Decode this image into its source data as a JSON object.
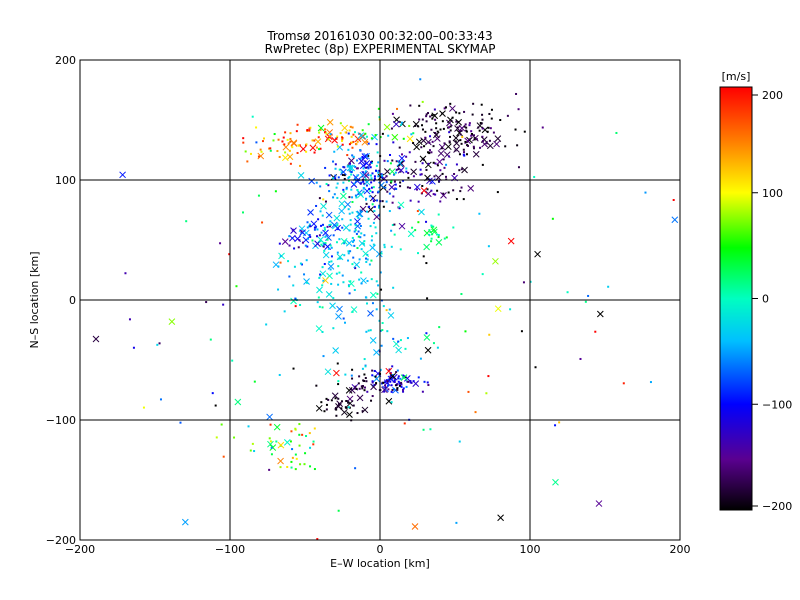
{
  "chart_data": {
    "type": "scatter",
    "title": "Tromsø 20161030 00:32:00–00:33:43",
    "subtitle": "RwPretec (8p) EXPERIMENTAL SKYMAP",
    "xlabel": "E–W location [km]",
    "ylabel": "N–S location [km]",
    "xlim": [
      -200,
      200
    ],
    "ylim": [
      -200,
      200
    ],
    "xticks": [
      "−200",
      "−100",
      "0",
      "100",
      "200"
    ],
    "yticks": [
      "−200",
      "−100",
      "0",
      "100",
      "200"
    ],
    "grid": "lines at ±100 and 0",
    "colorbar": {
      "label": "[m/s]",
      "range": [
        -200,
        200
      ],
      "ticks": [
        "200",
        "100",
        "0",
        "−100",
        "−200"
      ],
      "colormap": "black-purple-blue-cyan-green-yellow-red"
    },
    "markers": [
      "dot",
      "x"
    ],
    "clusters": [
      {
        "x": 50,
        "y": 140,
        "sx": 20,
        "sy": 12,
        "v": -180,
        "vs": 25,
        "n": 160
      },
      {
        "x": 20,
        "y": 100,
        "sx": 25,
        "sy": 15,
        "v": -160,
        "vs": 40,
        "n": 140
      },
      {
        "x": -10,
        "y": 105,
        "sx": 12,
        "sy": 12,
        "v": -70,
        "vs": 40,
        "n": 110
      },
      {
        "x": -20,
        "y": 60,
        "sx": 15,
        "sy": 30,
        "v": -40,
        "vs": 30,
        "n": 170
      },
      {
        "x": -45,
        "y": 55,
        "sx": 10,
        "sy": 8,
        "v": -110,
        "vs": 30,
        "n": 40
      },
      {
        "x": -30,
        "y": 135,
        "sx": 12,
        "sy": 6,
        "v": 160,
        "vs": 40,
        "n": 60
      },
      {
        "x": -65,
        "y": 130,
        "sx": 15,
        "sy": 8,
        "v": 140,
        "vs": 50,
        "n": 40
      },
      {
        "x": 0,
        "y": 140,
        "sx": 20,
        "sy": 8,
        "v": 30,
        "vs": 60,
        "n": 30
      },
      {
        "x": 10,
        "y": -68,
        "sx": 8,
        "sy": 6,
        "v": -110,
        "vs": 25,
        "n": 70
      },
      {
        "x": -5,
        "y": -72,
        "sx": 10,
        "sy": 6,
        "v": -180,
        "vs": 25,
        "n": 50
      },
      {
        "x": -25,
        "y": -88,
        "sx": 8,
        "sy": 6,
        "v": -195,
        "vs": 10,
        "n": 40
      },
      {
        "x": -60,
        "y": -120,
        "sx": 15,
        "sy": 10,
        "v": 60,
        "vs": 60,
        "n": 45
      },
      {
        "x": -30,
        "y": 20,
        "sx": 20,
        "sy": 25,
        "v": -20,
        "vs": 20,
        "n": 80
      },
      {
        "x": 35,
        "y": 55,
        "sx": 8,
        "sy": 5,
        "v": 20,
        "vs": 20,
        "n": 25
      },
      {
        "x": 0,
        "y": -40,
        "sx": 20,
        "sy": 20,
        "v": -30,
        "vs": 30,
        "n": 40
      },
      {
        "x": 0,
        "y": 0,
        "sx": 110,
        "sy": 110,
        "v": 0,
        "vs": 150,
        "n": 140
      }
    ]
  }
}
